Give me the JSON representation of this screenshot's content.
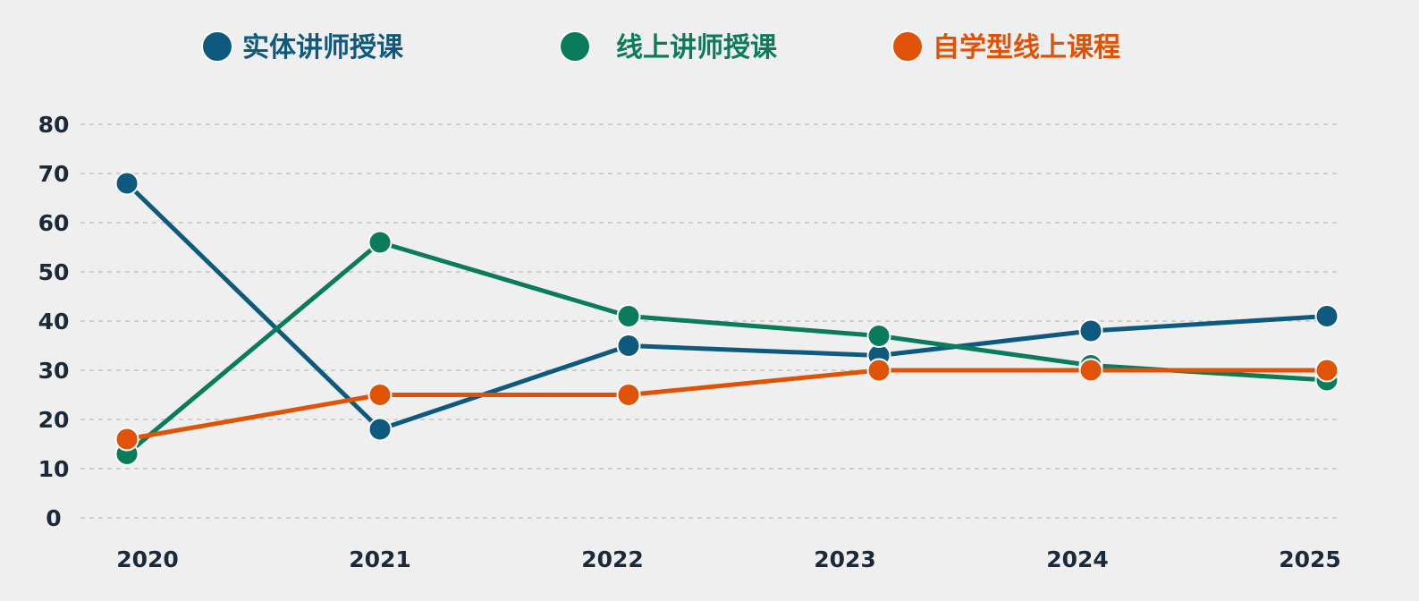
{
  "chart_data": {
    "type": "line",
    "title": "",
    "xlabel": "",
    "ylabel": "",
    "x": [
      "2020",
      "2021",
      "2022",
      "2023",
      "2024",
      "2025"
    ],
    "yticks": [
      "0",
      "10",
      "20",
      "30",
      "40",
      "50",
      "60",
      "70",
      "80"
    ],
    "ylim": [
      0,
      80
    ],
    "grid": true,
    "legend_position": "top",
    "series": [
      {
        "name": "实体讲师授课",
        "color": "#0e5a7e",
        "values": [
          68,
          18,
          35,
          33,
          38,
          41
        ]
      },
      {
        "name": "线上讲师授课",
        "color": "#0a7c5c",
        "values": [
          13,
          56,
          41,
          37,
          31,
          28
        ]
      },
      {
        "name": "自学型线上课程",
        "color": "#e05206",
        "values": [
          16,
          25,
          25,
          30,
          30,
          30
        ]
      }
    ]
  }
}
